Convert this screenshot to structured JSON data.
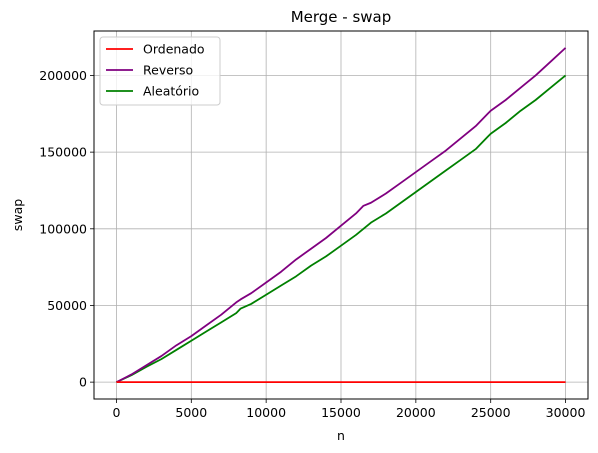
{
  "chart_data": {
    "type": "line",
    "title": "Merge - swap",
    "xlabel": "n",
    "ylabel": "swap",
    "xlim": [
      -1500,
      31500
    ],
    "ylim": [
      -11000,
      229000
    ],
    "xticks": [
      0,
      5000,
      10000,
      15000,
      20000,
      25000,
      30000
    ],
    "xtick_labels": [
      "0",
      "5000",
      "10000",
      "15000",
      "20000",
      "25000",
      "30000"
    ],
    "yticks": [
      0,
      50000,
      100000,
      150000,
      200000
    ],
    "ytick_labels": [
      "0",
      "50000",
      "100000",
      "150000",
      "200000"
    ],
    "grid": true,
    "legend_position": "upper-left",
    "series": [
      {
        "name": "Ordenado",
        "color": "#ff0000",
        "x": [
          0,
          30000
        ],
        "y": [
          0,
          0
        ]
      },
      {
        "name": "Reverso",
        "color": "#800080",
        "x": [
          0,
          1000,
          2000,
          3000,
          4000,
          5000,
          6000,
          7000,
          8000,
          8300,
          9000,
          10000,
          11000,
          12000,
          13000,
          14000,
          15000,
          16000,
          16500,
          17000,
          18000,
          19000,
          20000,
          21000,
          22000,
          23000,
          24000,
          24800,
          25000,
          26000,
          27000,
          28000,
          29000,
          30000
        ],
        "y": [
          0,
          5000,
          11000,
          17000,
          24000,
          30000,
          37000,
          44000,
          52000,
          54000,
          58000,
          65000,
          72000,
          80000,
          87000,
          94000,
          102000,
          110000,
          115000,
          117000,
          123000,
          130000,
          137000,
          144000,
          151000,
          159000,
          167000,
          175000,
          177000,
          184000,
          192000,
          200000,
          209000,
          218000
        ]
      },
      {
        "name": "Aleatório",
        "color": "#008000",
        "x": [
          0,
          1000,
          2000,
          3000,
          4000,
          5000,
          6000,
          7000,
          8000,
          8300,
          9000,
          10000,
          11000,
          12000,
          13000,
          14000,
          15000,
          16000,
          16500,
          17000,
          18000,
          19000,
          20000,
          21000,
          22000,
          23000,
          24000,
          24800,
          25000,
          26000,
          27000,
          28000,
          29000,
          30000
        ],
        "y": [
          0,
          4500,
          10000,
          15000,
          21000,
          27000,
          33000,
          39000,
          45000,
          48000,
          51000,
          57000,
          63000,
          69000,
          76000,
          82000,
          89000,
          96000,
          100000,
          104000,
          110000,
          117000,
          124000,
          131000,
          138000,
          145000,
          152000,
          160000,
          162000,
          169000,
          177000,
          184000,
          192000,
          200000
        ]
      }
    ]
  }
}
